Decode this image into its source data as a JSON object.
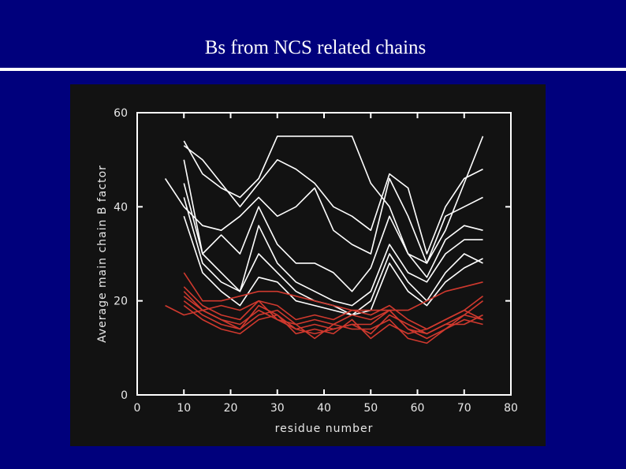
{
  "chart_data": {
    "type": "line",
    "title": "Bs from NCS related chains",
    "x_label": "residue number",
    "y_label": "Average main chain B factor",
    "x": [
      6,
      10,
      14,
      18,
      22,
      26,
      30,
      34,
      38,
      42,
      46,
      50,
      54,
      58,
      62,
      66,
      70,
      74
    ],
    "xlim": [
      0,
      80
    ],
    "ylim": [
      0,
      60
    ],
    "xticks": [
      0,
      10,
      20,
      30,
      40,
      50,
      60,
      70,
      80
    ],
    "yticks": [
      0,
      20,
      40,
      60
    ],
    "series": [
      {
        "color": "#ffffff",
        "values": [
          null,
          54,
          47,
          44,
          42,
          46,
          55,
          55,
          55,
          55,
          55,
          45,
          40,
          30,
          28,
          35,
          45,
          55
        ]
      },
      {
        "color": "#ffffff",
        "values": [
          null,
          53,
          50,
          45,
          40,
          45,
          50,
          48,
          45,
          40,
          38,
          35,
          47,
          44,
          30,
          40,
          46,
          48
        ]
      },
      {
        "color": "#ffffff",
        "values": [
          46,
          40,
          36,
          35,
          38,
          42,
          38,
          40,
          44,
          35,
          32,
          30,
          46,
          38,
          28,
          38,
          40,
          42
        ]
      },
      {
        "color": "#ffffff",
        "values": [
          null,
          50,
          30,
          34,
          30,
          40,
          32,
          28,
          28,
          26,
          22,
          27,
          38,
          30,
          25,
          33,
          36,
          35
        ]
      },
      {
        "color": "#ffffff",
        "values": [
          null,
          45,
          30,
          26,
          22,
          36,
          28,
          24,
          22,
          20,
          19,
          22,
          32,
          26,
          24,
          30,
          33,
          33
        ]
      },
      {
        "color": "#ffffff",
        "values": [
          null,
          42,
          28,
          24,
          22,
          30,
          26,
          22,
          20,
          19,
          17,
          20,
          30,
          24,
          20,
          26,
          30,
          28
        ]
      },
      {
        "color": "#ffffff",
        "values": [
          null,
          38,
          26,
          22,
          19,
          25,
          24,
          20,
          19,
          18,
          17,
          18,
          28,
          22,
          19,
          24,
          27,
          29
        ]
      },
      {
        "color": "#d0392e",
        "values": [
          null,
          26,
          20,
          20,
          21,
          22,
          22,
          21,
          20,
          19,
          18,
          18,
          18,
          18,
          20,
          22,
          23,
          24
        ]
      },
      {
        "color": "#d0392e",
        "values": [
          19,
          17,
          18,
          19,
          18,
          20,
          19,
          16,
          17,
          16,
          18,
          17,
          19,
          16,
          14,
          16,
          18,
          21
        ]
      },
      {
        "color": "#d0392e",
        "values": [
          null,
          22,
          18,
          16,
          15,
          18,
          16,
          14,
          15,
          14,
          15,
          15,
          18,
          14,
          12,
          14,
          17,
          20
        ]
      },
      {
        "color": "#d0392e",
        "values": [
          null,
          20,
          17,
          15,
          14,
          19,
          17,
          14,
          13,
          14,
          15,
          13,
          17,
          15,
          13,
          15,
          17,
          16
        ]
      },
      {
        "color": "#d0392e",
        "values": [
          null,
          21,
          18,
          16,
          14,
          17,
          18,
          15,
          12,
          15,
          14,
          14,
          16,
          12,
          11,
          14,
          16,
          15
        ]
      },
      {
        "color": "#d0392e",
        "values": [
          null,
          19,
          16,
          14,
          13,
          16,
          17,
          13,
          14,
          13,
          16,
          12,
          15,
          13,
          14,
          16,
          18,
          16
        ]
      },
      {
        "color": "#d0392e",
        "values": [
          null,
          23,
          19,
          17,
          16,
          20,
          16,
          15,
          16,
          15,
          17,
          16,
          18,
          14,
          13,
          15,
          15,
          17
        ]
      }
    ]
  }
}
